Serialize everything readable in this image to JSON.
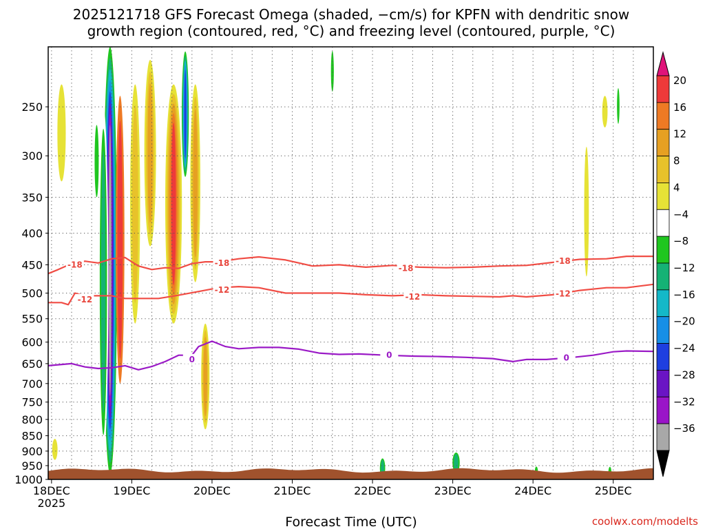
{
  "title_line1": "2025121718 GFS Forecast Omega (shaded, −cm/s) for KPFN with dendritic snow",
  "title_line2": "growth region (contoured, red, °C) and freezing level (contoured, purple, °C)",
  "xlabel": "Forecast Time (UTC)",
  "credit": "coolwx.com/modelts",
  "chart_data": {
    "type": "heatmap",
    "title": "2025121718 GFS Forecast Omega (shaded, −cm/s) for KPFN with dendritic snow growth region (contoured, red, °C) and freezing level (contoured, purple, °C)",
    "xlabel": "Forecast Time (UTC)",
    "ylabel": "",
    "x_ticks": [
      {
        "t": 0,
        "label": "18DEC",
        "sub": "2025"
      },
      {
        "t": 24,
        "label": "19DEC",
        "sub": ""
      },
      {
        "t": 48,
        "label": "20DEC",
        "sub": ""
      },
      {
        "t": 72,
        "label": "21DEC",
        "sub": ""
      },
      {
        "t": 96,
        "label": "22DEC",
        "sub": ""
      },
      {
        "t": 120,
        "label": "23DEC",
        "sub": ""
      },
      {
        "t": 144,
        "label": "24DEC",
        "sub": ""
      },
      {
        "t": 168,
        "label": "25DEC",
        "sub": ""
      }
    ],
    "xlim_hours": [
      -1,
      180
    ],
    "y_ticks": [
      250,
      300,
      350,
      400,
      450,
      500,
      550,
      600,
      650,
      700,
      750,
      800,
      850,
      900,
      950,
      1000
    ],
    "ylim_hpa": [
      200,
      1000
    ],
    "y_scale": "log (pressure)",
    "grid": "dotted",
    "colorbar": {
      "labels": [
        "20",
        "16",
        "12",
        "8",
        "4",
        "−4",
        "−8",
        "−12",
        "−16",
        "−20",
        "−24",
        "−28",
        "−32",
        "−36"
      ],
      "colors": [
        "#ee3a3a",
        "#ee7a24",
        "#e6a022",
        "#e8c22a",
        "#e6e236",
        "#ffffff",
        "#1fc61f",
        "#15b275",
        "#14b8c8",
        "#178fe6",
        "#1e3fe0",
        "#6a14c4",
        "#9a14c8",
        "#a8a8a8"
      ],
      "top_arrow_color": "#e0147a",
      "bottom_arrow_color": "#000000"
    },
    "contours": [
      {
        "name": "-18",
        "color": "#f04c44",
        "points": [
          [
            -1,
            465
          ],
          [
            2,
            458
          ],
          [
            6,
            448
          ],
          [
            10,
            444
          ],
          [
            14,
            447
          ],
          [
            18,
            440
          ],
          [
            22,
            438
          ],
          [
            26,
            452
          ],
          [
            30,
            458
          ],
          [
            34,
            455
          ],
          [
            38,
            456
          ],
          [
            42,
            448
          ],
          [
            46,
            445
          ],
          [
            50,
            445
          ],
          [
            56,
            440
          ],
          [
            62,
            437
          ],
          [
            70,
            442
          ],
          [
            78,
            452
          ],
          [
            86,
            450
          ],
          [
            94,
            454
          ],
          [
            102,
            451
          ],
          [
            110,
            454
          ],
          [
            118,
            455
          ],
          [
            126,
            454
          ],
          [
            134,
            452
          ],
          [
            142,
            451
          ],
          [
            150,
            446
          ],
          [
            158,
            441
          ],
          [
            166,
            440
          ],
          [
            172,
            436
          ],
          [
            180,
            436
          ]
        ],
        "labels": [
          [
            7,
            450,
            "-18"
          ],
          [
            51,
            447,
            "-18"
          ],
          [
            106,
            456,
            "-18"
          ],
          [
            153,
            444,
            "-18"
          ]
        ]
      },
      {
        "name": "-12",
        "color": "#f04c44",
        "points": [
          [
            -1,
            518
          ],
          [
            3,
            518
          ],
          [
            5,
            522
          ],
          [
            7,
            500
          ],
          [
            10,
            505
          ],
          [
            14,
            505
          ],
          [
            18,
            505
          ],
          [
            22,
            510
          ],
          [
            26,
            510
          ],
          [
            32,
            510
          ],
          [
            38,
            504
          ],
          [
            44,
            497
          ],
          [
            50,
            490
          ],
          [
            56,
            488
          ],
          [
            62,
            490
          ],
          [
            70,
            500
          ],
          [
            78,
            500
          ],
          [
            86,
            500
          ],
          [
            94,
            503
          ],
          [
            102,
            505
          ],
          [
            110,
            503
          ],
          [
            118,
            505
          ],
          [
            126,
            506
          ],
          [
            134,
            507
          ],
          [
            138,
            505
          ],
          [
            142,
            507
          ],
          [
            150,
            503
          ],
          [
            158,
            495
          ],
          [
            166,
            490
          ],
          [
            172,
            490
          ],
          [
            180,
            484
          ]
        ],
        "labels": [
          [
            10,
            512,
            "-12"
          ],
          [
            51,
            494,
            "-12"
          ],
          [
            108,
            507,
            "-12"
          ],
          [
            153,
            501,
            "-12"
          ]
        ]
      },
      {
        "name": "0",
        "color": "#9a19c6",
        "points": [
          [
            -1,
            655
          ],
          [
            6,
            650
          ],
          [
            10,
            658
          ],
          [
            14,
            662
          ],
          [
            18,
            660
          ],
          [
            22,
            655
          ],
          [
            26,
            665
          ],
          [
            30,
            657
          ],
          [
            34,
            645
          ],
          [
            38,
            630
          ],
          [
            42,
            630
          ],
          [
            44,
            610
          ],
          [
            48,
            598
          ],
          [
            52,
            610
          ],
          [
            56,
            615
          ],
          [
            62,
            612
          ],
          [
            68,
            612
          ],
          [
            74,
            616
          ],
          [
            80,
            625
          ],
          [
            86,
            628
          ],
          [
            92,
            627
          ],
          [
            100,
            630
          ],
          [
            108,
            632
          ],
          [
            116,
            633
          ],
          [
            124,
            635
          ],
          [
            132,
            638
          ],
          [
            138,
            645
          ],
          [
            142,
            640
          ],
          [
            148,
            640
          ],
          [
            156,
            635
          ],
          [
            162,
            630
          ],
          [
            168,
            622
          ],
          [
            172,
            620
          ],
          [
            180,
            621
          ]
        ],
        "labels": [
          [
            42,
            640,
            "0"
          ],
          [
            101,
            630,
            "0"
          ],
          [
            154,
            636,
            "0"
          ]
        ]
      }
    ],
    "shaded_regions": [
      {
        "t": 17.5,
        "p": [
          200,
          980
        ],
        "w": 4.2,
        "levels": [
          "-8",
          "-12",
          "-16",
          "-20",
          "-24",
          "-28",
          "-32",
          "-36"
        ]
      },
      {
        "t": 20.5,
        "p": [
          240,
          700
        ],
        "w": 2.6,
        "levels": [
          "16",
          "20"
        ]
      },
      {
        "t": 15.5,
        "p": [
          250,
          920
        ],
        "w": 3.0,
        "levels": [
          "-4",
          "-8",
          "-12"
        ]
      },
      {
        "t": 13.5,
        "p": [
          260,
          360
        ],
        "w": 2.0,
        "levels": [
          "-4",
          "-8"
        ]
      },
      {
        "t": 25,
        "p": [
          230,
          560
        ],
        "w": 3.0,
        "levels": [
          "4",
          "8"
        ]
      },
      {
        "t": 29.5,
        "p": [
          210,
          420
        ],
        "w": 3.5,
        "levels": [
          "4",
          "8",
          "12"
        ]
      },
      {
        "t": 36.5,
        "p": [
          230,
          560
        ],
        "w": 5.0,
        "levels": [
          "4",
          "8",
          "12",
          "16",
          "20"
        ]
      },
      {
        "t": 43,
        "p": [
          230,
          480
        ],
        "w": 3.0,
        "levels": [
          "4",
          "8",
          "12"
        ]
      },
      {
        "t": 46,
        "p": [
          560,
          830
        ],
        "w": 2.5,
        "levels": [
          "4",
          "8",
          "12"
        ]
      },
      {
        "t": 40,
        "p": [
          200,
          330
        ],
        "w": 2.5,
        "levels": [
          "-4",
          "-8",
          "-12",
          "-16",
          "-20",
          "-24"
        ]
      },
      {
        "t": 3,
        "p": [
          230,
          330
        ],
        "w": 2.5,
        "levels": [
          "4"
        ]
      },
      {
        "t": 1,
        "p": [
          860,
          930
        ],
        "w": 1.6,
        "levels": [
          "4"
        ]
      },
      {
        "t": 99,
        "p": [
          920,
          1000
        ],
        "w": 2.2,
        "levels": [
          "-4",
          "-8",
          "-12"
        ]
      },
      {
        "t": 121,
        "p": [
          900,
          980
        ],
        "w": 3.0,
        "levels": [
          "-4",
          "-8",
          "-12"
        ]
      },
      {
        "t": 145,
        "p": [
          950,
          990
        ],
        "w": 1.5,
        "levels": [
          "-4",
          "-8"
        ]
      },
      {
        "t": 167,
        "p": [
          950,
          1000
        ],
        "w": 1.5,
        "levels": [
          "-4",
          "-8"
        ]
      },
      {
        "t": 160,
        "p": [
          290,
          470
        ],
        "w": 1.4,
        "levels": [
          "4"
        ]
      },
      {
        "t": 165.5,
        "p": [
          240,
          270
        ],
        "w": 1.6,
        "levels": [
          "4"
        ]
      },
      {
        "t": 169.5,
        "p": [
          230,
          270
        ],
        "w": 1.2,
        "levels": [
          "-4",
          "-8"
        ]
      },
      {
        "t": 84,
        "p": [
          200,
          240
        ],
        "w": 1.4,
        "levels": [
          "-4",
          "-8"
        ]
      }
    ]
  }
}
